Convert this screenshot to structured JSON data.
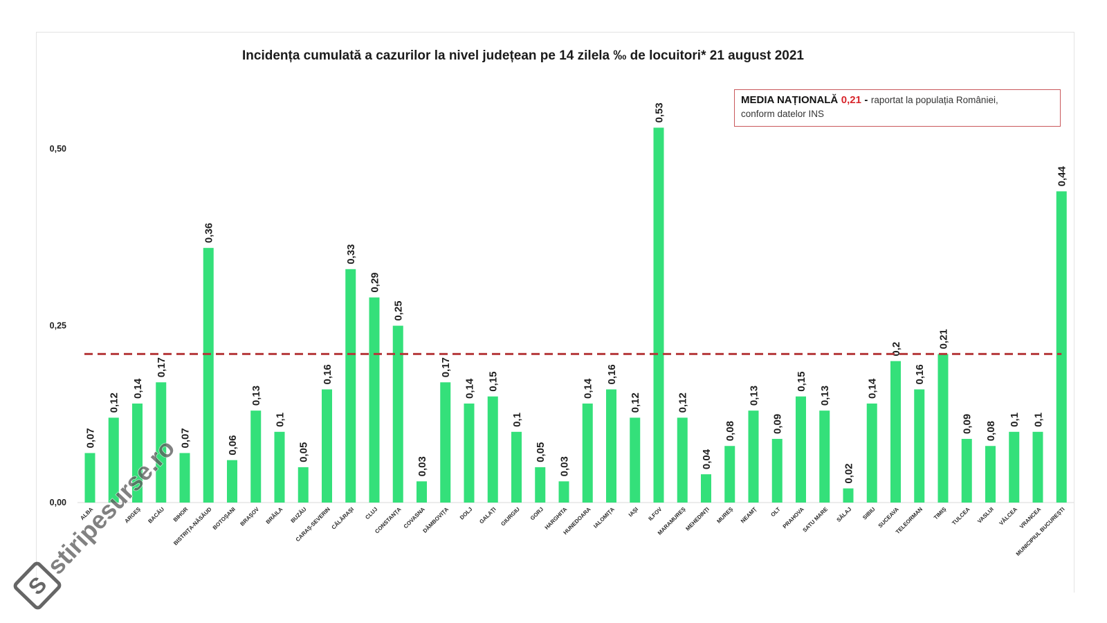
{
  "chart_data": {
    "type": "bar",
    "title": "Incidența cumulată a cazurilor la nivel județean pe 14 zilela ‰ de locuitori* 21 august 2021",
    "categories": [
      "ALBA",
      "",
      "ARGEȘ",
      "BACĂU",
      "BIHOR",
      "BISTRIȚA-NĂSĂUD",
      "BOTOȘANI",
      "BRAȘOV",
      "BRĂILA",
      "BUZĂU",
      "CARAȘ-SEVERIN",
      "CĂLĂRAȘI",
      "CLUJ",
      "CONSTANȚA",
      "COVASNA",
      "DÂMBOVIȚA",
      "DOLJ",
      "GALAȚI",
      "GIURGIU",
      "GORJ",
      "HARGHITA",
      "HUNEDOARA",
      "IALOMIȚA",
      "IAȘI",
      "ILFOV",
      "MARAMUREȘ",
      "MEHEDINȚI",
      "MUREȘ",
      "NEAMȚ",
      "OLT",
      "PRAHOVA",
      "SATU MARE",
      "SĂLAJ",
      "SIBIU",
      "SUCEAVA",
      "TELEORMAN",
      "TIMIȘ",
      "TULCEA",
      "VASLUI",
      "VÂLCEA",
      "VRANCEA",
      "MUNICIPIUL BUCUREȘTI"
    ],
    "values": [
      0.07,
      0.12,
      0.14,
      0.17,
      0.07,
      0.36,
      0.06,
      0.13,
      0.1,
      0.05,
      0.16,
      0.33,
      0.29,
      0.25,
      0.03,
      0.17,
      0.14,
      0.15,
      0.1,
      0.05,
      0.03,
      0.14,
      0.16,
      0.12,
      0.53,
      0.12,
      0.04,
      0.08,
      0.13,
      0.09,
      0.15,
      0.13,
      0.02,
      0.14,
      0.2,
      0.16,
      0.21,
      0.09,
      0.08,
      0.1,
      0.1,
      0.44
    ],
    "value_labels": [
      "0,07",
      "0,12",
      "0,14",
      "0,17",
      "0,07",
      "0,36",
      "0,06",
      "0,13",
      "0,1",
      "0,05",
      "0,16",
      "0,33",
      "0,29",
      "0,25",
      "0,03",
      "0,17",
      "0,14",
      "0,15",
      "0,1",
      "0,05",
      "0,03",
      "0,14",
      "0,16",
      "0,12",
      "0,53",
      "0,12",
      "0,04",
      "0,08",
      "0,13",
      "0,09",
      "0,15",
      "0,13",
      "0,02",
      "0,14",
      "0,2",
      "0,16",
      "0,21",
      "0,09",
      "0,08",
      "0,1",
      "0,1",
      "0,44"
    ],
    "ylim": [
      0,
      0.55
    ],
    "y_ticks": [
      {
        "value": 0,
        "label": "0,00"
      },
      {
        "value": 0.25,
        "label": "0,25"
      },
      {
        "value": 0.5,
        "label": "0,50"
      }
    ],
    "grid": false,
    "bar_color": "#34e07a",
    "reference_line": {
      "value": 0.21,
      "style": "dashed",
      "color": "#b5383a"
    },
    "annotation": {
      "position": "top-right",
      "label": "MEDIA NAȚIONALĂ",
      "value": "0,21",
      "separator": "-",
      "text": "raportat la populația României,",
      "text_line2": "conform datelor INS",
      "value_color": "#d8262c",
      "border_color": "#c9575a"
    }
  },
  "watermark": {
    "text": "stiripesurse.ro",
    "logo_letter": "S",
    "color": "#5e5e5e"
  }
}
